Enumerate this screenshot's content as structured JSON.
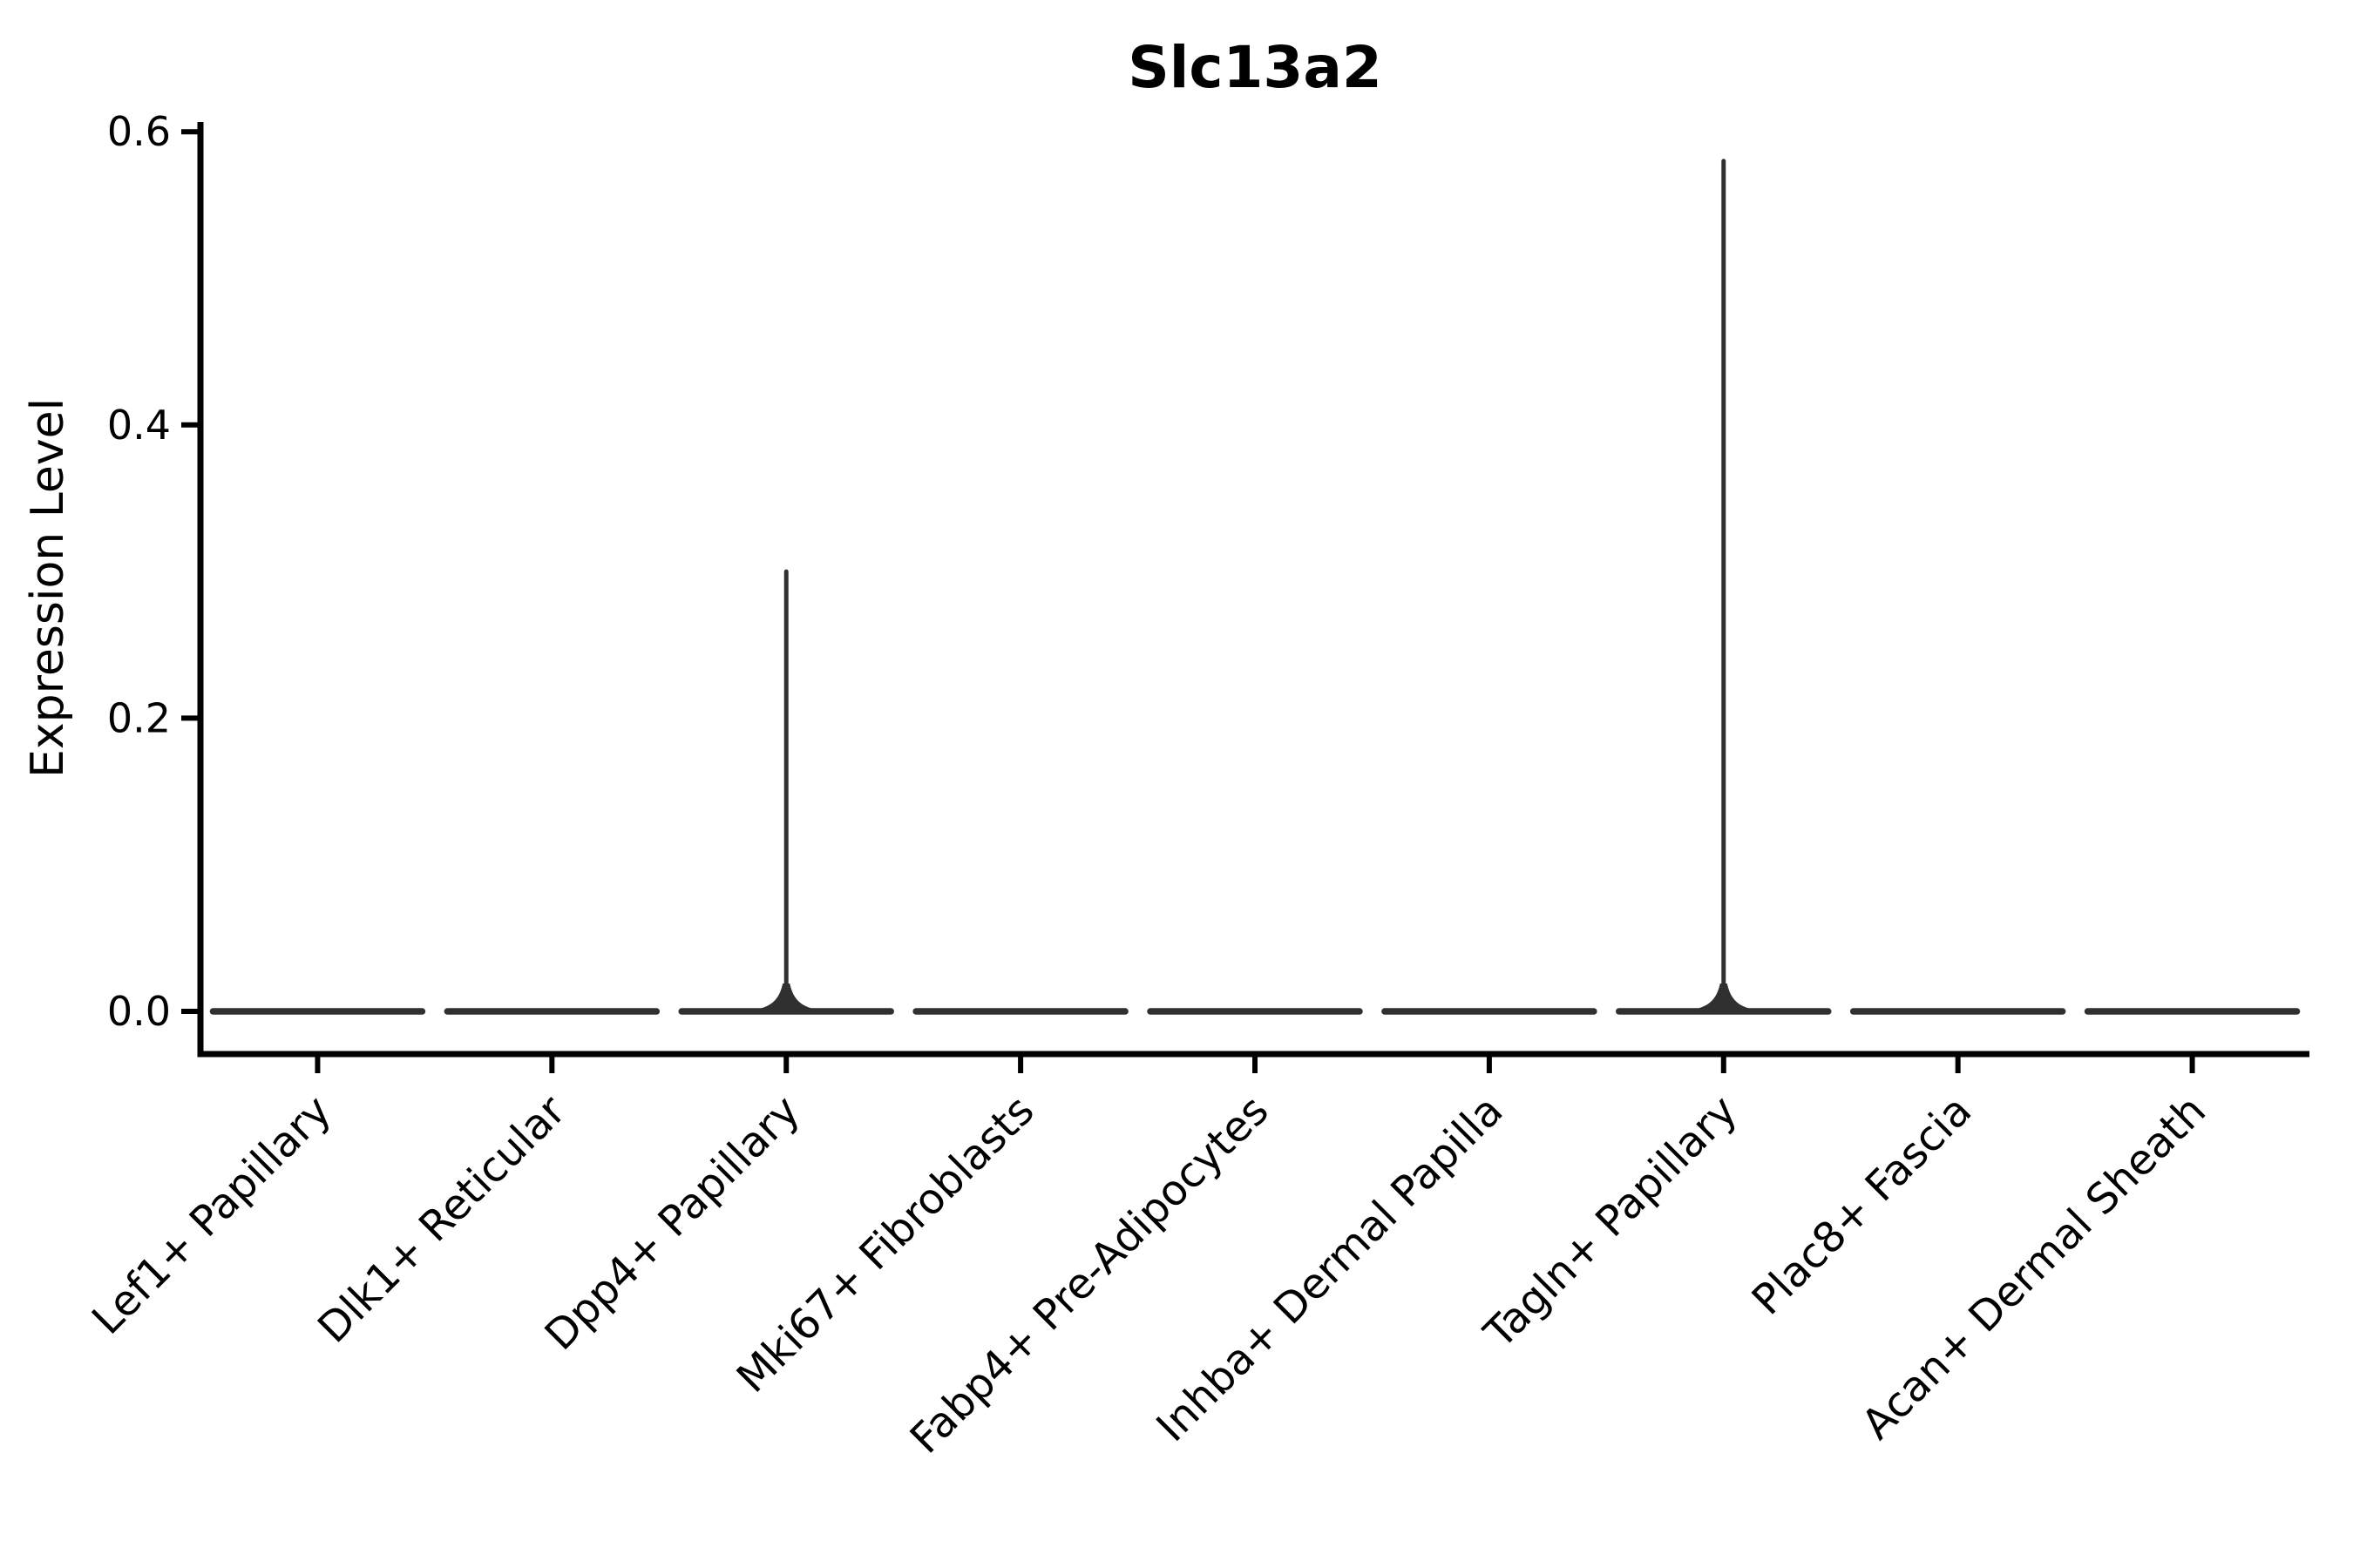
{
  "figure": {
    "background": "#ffffff"
  },
  "chart_data": {
    "type": "violin",
    "title": "Slc13a2",
    "ylabel": "Expression Level",
    "xlabel": "",
    "categories": [
      "Lef1+ Papillary",
      "Dlk1+ Reticular",
      "Dpp4+ Papillary",
      "Mki67+ Fibroblasts",
      "Fabp4+ Pre-Adipocytes",
      "Inhba+ Dermal Papilla",
      "Tagln+ Papillary",
      "Plac8+ Fascia",
      "Acan+ Dermal Sheath"
    ],
    "series": [
      {
        "name": "Expression Level distribution",
        "baseline_value": 0.0,
        "max_values": [
          0.0,
          0.0,
          0.3,
          0.0,
          0.0,
          0.0,
          0.58,
          0.0,
          0.0
        ],
        "note": "All violins are collapsed flat at 0; only Dpp4+ Papillary (peak ~0.30) and Tagln+ Papillary (peak ~0.58) show thin density spikes"
      }
    ],
    "yticks": [
      0.0,
      0.2,
      0.4,
      0.6
    ],
    "ytick_labels": [
      "0.0",
      "0.2",
      "0.4",
      "0.6"
    ],
    "ylim": [
      -0.029,
      0.607
    ],
    "x_tick_rotation_deg": 45,
    "grid": false,
    "legend": false,
    "colors": {
      "violin": "#303030",
      "axis": "#000000",
      "text": "#000000",
      "background": "#ffffff"
    }
  }
}
